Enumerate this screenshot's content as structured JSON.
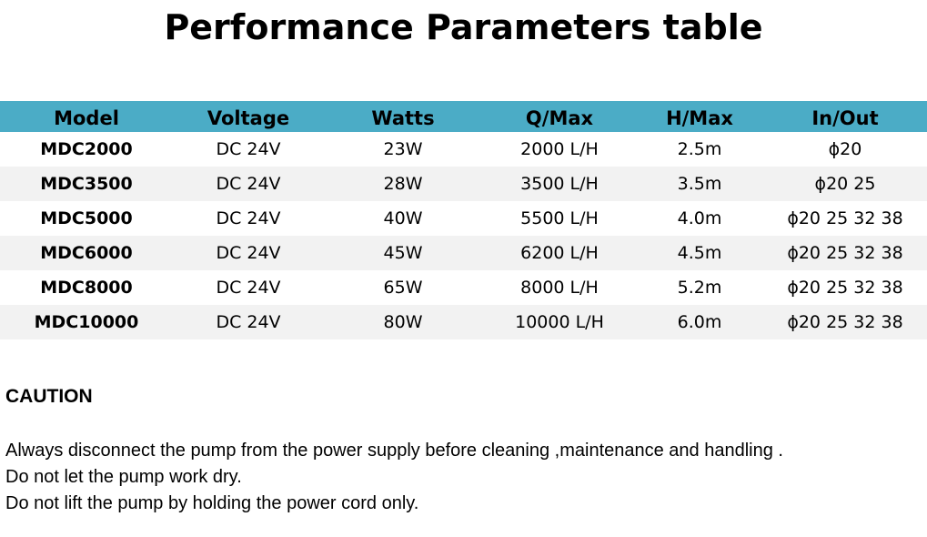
{
  "header": {
    "title": "Performance Parameters table"
  },
  "table": {
    "columns": [
      "Model",
      "Voltage",
      "Watts",
      "Q/Max",
      "H/Max",
      "In/Out"
    ],
    "rows": [
      [
        "MDC2000",
        "DC 24V",
        "23W",
        "2000 L/H",
        "2.5m",
        "ϕ20"
      ],
      [
        "MDC3500",
        "DC 24V",
        "28W",
        "3500 L/H",
        "3.5m",
        "ϕ20 25"
      ],
      [
        "MDC5000",
        "DC 24V",
        "40W",
        "5500 L/H",
        "4.0m",
        "ϕ20 25 32 38"
      ],
      [
        "MDC6000",
        "DC 24V",
        "45W",
        "6200 L/H",
        "4.5m",
        "ϕ20 25 32 38"
      ],
      [
        "MDC8000",
        "DC 24V",
        "65W",
        "8000 L/H",
        "5.2m",
        "ϕ20 25 32 38"
      ],
      [
        "MDC10000",
        "DC 24V",
        "80W",
        "10000 L/H",
        "6.0m",
        "ϕ20 25 32 38"
      ]
    ]
  },
  "caution": {
    "title": "CAUTION",
    "lines": [
      "Always disconnect the pump from the power supply before cleaning ,maintenance and handling .",
      "Do not let the pump work dry.",
      "Do not lift the pump by holding the power cord only."
    ]
  }
}
